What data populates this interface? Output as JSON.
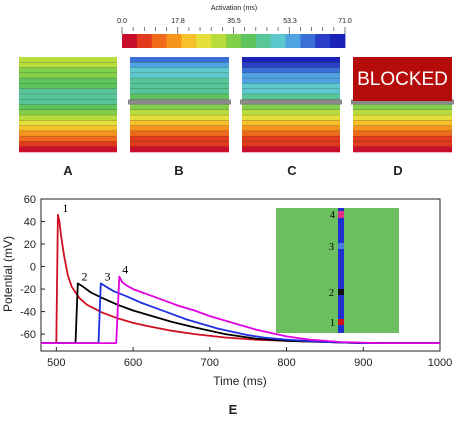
{
  "colors": {
    "activation_scale": [
      "#c8102e",
      "#e23a1c",
      "#f06a1c",
      "#f5951e",
      "#f7c12a",
      "#e6de3a",
      "#b8dc3c",
      "#82cf4a",
      "#5ec35c",
      "#59c69a",
      "#5ec8cf",
      "#4fa3e0",
      "#3a6fd8",
      "#2a3fc8",
      "#1b22b8"
    ],
    "blocked_box": "#b50b0b",
    "block_bar": "#8a8a8a",
    "inset_tissue": "#6bbf5e",
    "inset_fiber": "#1f2fd0",
    "inset_point_1": "#d01020",
    "inset_point_2": "#111111",
    "inset_point_3": "#4a7fd8",
    "inset_point_4": "#e0308a",
    "axis": "#222222"
  },
  "colorbar": {
    "title": "Activation (ms)",
    "ticks": [
      "0.0",
      "17.8",
      "35.5",
      "53.3",
      "71.0"
    ]
  },
  "panels": [
    {
      "label": "A",
      "block": "none"
    },
    {
      "label": "B",
      "block": "bar"
    },
    {
      "label": "C",
      "block": "bar"
    },
    {
      "label": "D",
      "block": "bar",
      "overlay_text": "BLOCKED"
    }
  ],
  "plot_label": "E",
  "inset": {
    "point_labels": [
      "4",
      "3",
      "2",
      "1"
    ]
  },
  "chart_data": {
    "type": "line",
    "xlabel": "Time (ms)",
    "ylabel": "Potential (mV)",
    "xlim": [
      480,
      1000
    ],
    "ylim": [
      -75,
      60
    ],
    "xticks": [
      "500",
      "600",
      "700",
      "800",
      "900",
      "1000"
    ],
    "yticks": [
      "60",
      "40",
      "20",
      "0",
      "-20",
      "-40",
      "-60"
    ],
    "grid": false,
    "series": [
      {
        "label": "1",
        "color": "#d01020",
        "upstroke": 500,
        "peak": 46,
        "rest": -68,
        "x": [
          480,
          500,
          502,
          504,
          506,
          510,
          515,
          520,
          530,
          540,
          560,
          580,
          600,
          620,
          650,
          680,
          720,
          760,
          800,
          850,
          900,
          1000
        ],
        "y": [
          -68,
          -68,
          46,
          40,
          28,
          10,
          -8,
          -18,
          -28,
          -34,
          -41,
          -46,
          -50,
          -53,
          -57,
          -60,
          -63,
          -65,
          -66,
          -67,
          -68,
          -68
        ]
      },
      {
        "label": "2",
        "color": "#000000",
        "upstroke": 525,
        "peak": -15,
        "rest": -68,
        "x": [
          480,
          525,
          528,
          535,
          545,
          560,
          580,
          600,
          620,
          650,
          680,
          700,
          720,
          740,
          760,
          800,
          850,
          900,
          1000
        ],
        "y": [
          -68,
          -68,
          -15,
          -18,
          -23,
          -28,
          -34,
          -39,
          -43,
          -49,
          -54,
          -57,
          -60,
          -62,
          -64,
          -66,
          -67,
          -68,
          -68
        ]
      },
      {
        "label": "3",
        "color": "#1f2fe0",
        "upstroke": 555,
        "peak": -15,
        "rest": -68,
        "x": [
          480,
          555,
          558,
          565,
          575,
          590,
          610,
          630,
          650,
          670,
          690,
          710,
          730,
          750,
          770,
          800,
          850,
          900,
          1000
        ],
        "y": [
          -68,
          -68,
          -15,
          -18,
          -22,
          -26,
          -32,
          -37,
          -42,
          -47,
          -51,
          -55,
          -58,
          -61,
          -63,
          -65,
          -67,
          -68,
          -68
        ]
      },
      {
        "label": "4",
        "color": "#e000e0",
        "upstroke": 578,
        "peak": -9,
        "rest": -68,
        "x": [
          480,
          578,
          582,
          586,
          592,
          600,
          620,
          640,
          660,
          680,
          700,
          720,
          740,
          760,
          780,
          800,
          830,
          870,
          920,
          1000
        ],
        "y": [
          -68,
          -68,
          -9,
          -14,
          -17,
          -20,
          -25,
          -30,
          -35,
          -39,
          -44,
          -48,
          -52,
          -56,
          -59,
          -62,
          -65,
          -67,
          -68,
          -68
        ]
      }
    ]
  }
}
